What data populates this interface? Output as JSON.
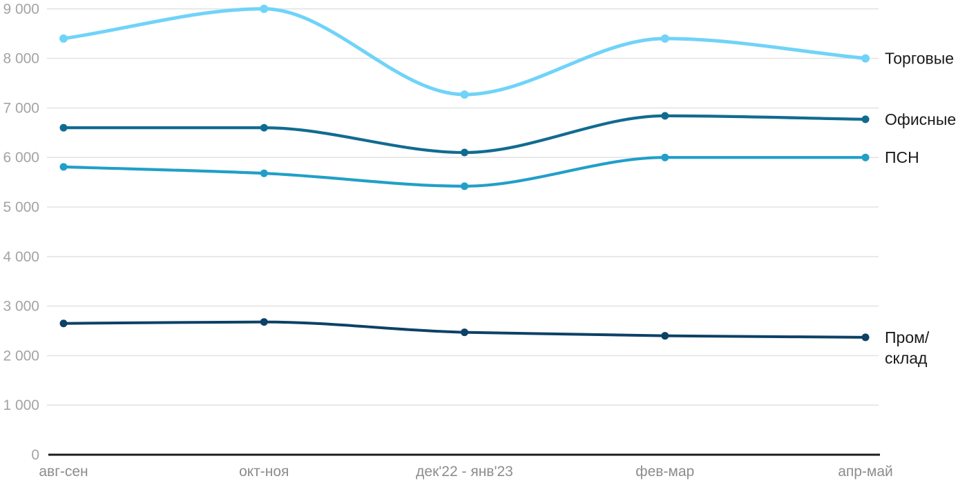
{
  "chart_data": {
    "type": "line",
    "title": "",
    "xlabel": "",
    "ylabel": "",
    "x_tick_labels": [
      "авг-сен",
      "окт-ноя",
      "дек'22 - янв'23",
      "фев-мар",
      "апр-май"
    ],
    "y_ticks": [
      {
        "value": 0,
        "label": "0"
      },
      {
        "value": 1000,
        "label": "1 000"
      },
      {
        "value": 2000,
        "label": "2 000"
      },
      {
        "value": 3000,
        "label": "3 000"
      },
      {
        "value": 4000,
        "label": "4 000"
      },
      {
        "value": 5000,
        "label": "5 000"
      },
      {
        "value": 6000,
        "label": "6 000"
      },
      {
        "value": 7000,
        "label": "7 000"
      },
      {
        "value": 8000,
        "label": "8 000"
      },
      {
        "value": 9000,
        "label": "9 000"
      }
    ],
    "ylim": [
      0,
      9000
    ],
    "grid": true,
    "curve": "monotone",
    "legend_position": "right-end-of-line",
    "series": [
      {
        "name": "Торговые",
        "label_lines": [
          "Торговые"
        ],
        "color": "#70d3f8",
        "values": [
          8400,
          9000,
          7270,
          8400,
          8000
        ]
      },
      {
        "name": "Офисные",
        "label_lines": [
          "Офисные"
        ],
        "color": "#116b90",
        "values": [
          6600,
          6600,
          6100,
          6840,
          6770
        ]
      },
      {
        "name": "ПСН",
        "label_lines": [
          "ПСН"
        ],
        "color": "#219fc9",
        "values": [
          5810,
          5680,
          5420,
          6000,
          6000
        ]
      },
      {
        "name": "Пром/склад",
        "label_lines": [
          "Пром/",
          "склад"
        ],
        "color": "#0d4166",
        "values": [
          2650,
          2680,
          2470,
          2400,
          2370
        ]
      }
    ]
  },
  "colors": {
    "background": "#ffffff",
    "gridline": "#e4e4e4",
    "axis_line": "#1c1c1c",
    "y_tick_text": "#a3a3a3",
    "x_tick_text": "#8c8c8c",
    "series_label_text": "#1a1a1a"
  }
}
